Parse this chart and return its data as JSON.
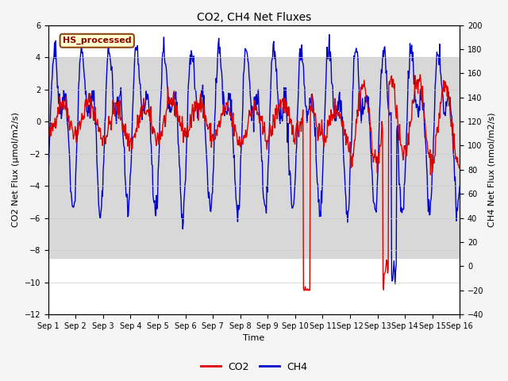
{
  "title": "CO2, CH4 Net Fluxes",
  "xlabel": "Time",
  "ylabel_left": "CO2 Net Flux (μmol/m2/s)",
  "ylabel_right": "CH4 Net Flux (nmol/m2/s)",
  "ylim_left": [
    -12,
    6
  ],
  "ylim_right": [
    -40,
    200
  ],
  "yticks_left": [
    -12,
    -10,
    -8,
    -6,
    -4,
    -2,
    0,
    2,
    4,
    6
  ],
  "yticks_right": [
    -40,
    -20,
    0,
    20,
    40,
    60,
    80,
    100,
    120,
    140,
    160,
    180,
    200
  ],
  "xtick_labels": [
    "Sep 1",
    "Sep 2",
    "Sep 3",
    "Sep 4",
    "Sep 5",
    "Sep 6",
    "Sep 7",
    "Sep 8",
    "Sep 9",
    "Sep 10",
    "Sep 11",
    "Sep 12",
    "Sep 13",
    "Sep 14",
    "Sep 15",
    "Sep 16"
  ],
  "shade_ylim": [
    -8.5,
    4.0
  ],
  "shade_color": "#d8d8d8",
  "text_box_label": "HS_processed",
  "text_box_bg": "#ffffcc",
  "text_box_edge": "#8B4513",
  "text_box_text_color": "#8B0000",
  "co2_color": "#dd0000",
  "ch4_color": "#0000cc",
  "n_days": 15,
  "points_per_day": 48,
  "seed": 42,
  "plot_bg_color": "#ffffff",
  "fig_bg_color": "#f5f5f5",
  "title_fontsize": 10,
  "axis_label_fontsize": 8,
  "tick_fontsize": 7,
  "legend_fontsize": 9,
  "linewidth_co2": 1.0,
  "linewidth_ch4": 1.0
}
